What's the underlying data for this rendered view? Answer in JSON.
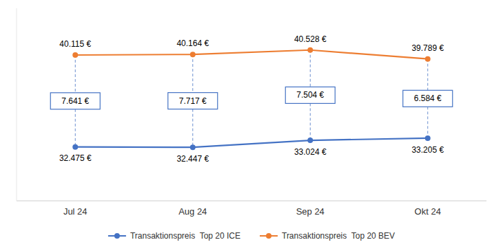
{
  "chart_data": {
    "type": "line",
    "categories": [
      "Jul 24",
      "Aug 24",
      "Sep 24",
      "Okt 24"
    ],
    "series": [
      {
        "name": "Transaktionspreis  Top 20 ICE",
        "color": "#4472C4",
        "marker": "circle",
        "line_style": "solid",
        "values": [
          32475,
          32447,
          33024,
          33205
        ],
        "value_labels": [
          "32.475 €",
          "32.447 €",
          "33.024 €",
          "33.205 €"
        ]
      },
      {
        "name": "Transaktionspreis  Top 20 BEV",
        "color": "#ED7D31",
        "marker": "circle",
        "line_style": "solid",
        "values": [
          40115,
          40164,
          40528,
          39789
        ],
        "value_labels": [
          "40.115 €",
          "40.164 €",
          "40.528 €",
          "39.789 €"
        ]
      }
    ],
    "annotations": [
      "7.641 €",
      "7.717 €",
      "7.504 €",
      "6.584 €"
    ],
    "ylim": [
      28000,
      44000
    ],
    "tick_labels": "x",
    "data_labels": true,
    "grid": false,
    "legend": "bottom"
  }
}
